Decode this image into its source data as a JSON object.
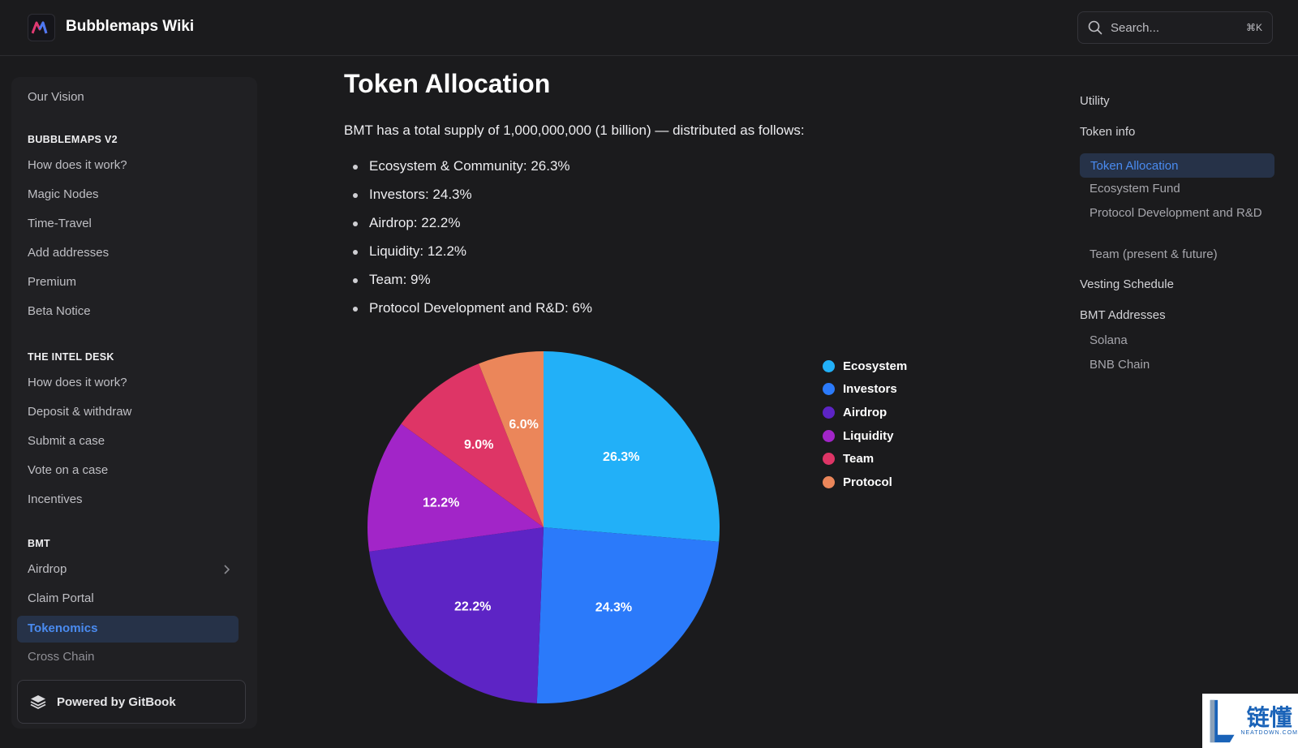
{
  "header": {
    "brand": "Bubblemaps Wiki",
    "search_placeholder": "Search...",
    "search_shortcut": "⌘K"
  },
  "sidebar": {
    "top_item": "Our Vision",
    "sections": [
      {
        "heading": "BUBBLEMAPS V2",
        "items": [
          "How does it work?",
          "Magic Nodes",
          "Time-Travel",
          "Add addresses",
          "Premium",
          "Beta Notice"
        ]
      },
      {
        "heading": "THE INTEL DESK",
        "items": [
          "How does it work?",
          "Deposit & withdraw",
          "Submit a case",
          "Vote on a case",
          "Incentives"
        ]
      },
      {
        "heading": "BMT",
        "items": [
          "Airdrop",
          "Claim Portal",
          "Tokenomics",
          "Cross Chain"
        ]
      }
    ],
    "active_item": "Tokenomics",
    "powered_by": "Powered by GitBook"
  },
  "main": {
    "title": "Token Allocation",
    "intro": "BMT has a total supply of 1,000,000,000 (1 billion) — distributed as follows:",
    "bullets": [
      "Ecosystem & Community: 26.3%",
      "Investors: 24.3%",
      "Airdrop: 22.2%",
      "Liquidity: 12.2%",
      "Team: 9%",
      "Protocol Development and R&D: 6%"
    ]
  },
  "chart_data": {
    "type": "pie",
    "categories": [
      "Ecosystem",
      "Investors",
      "Airdrop",
      "Liquidity",
      "Team",
      "Protocol"
    ],
    "values": [
      26.3,
      24.3,
      22.2,
      12.2,
      9.0,
      6.0
    ],
    "labels": [
      "26.3%",
      "24.3%",
      "22.2%",
      "12.2%",
      "9.0%",
      "6.0%"
    ],
    "colors": [
      "#22b0f8",
      "#2b7afa",
      "#5d24c5",
      "#a225c8",
      "#de3566",
      "#eb865a"
    ],
    "legend_position": "right"
  },
  "toc": {
    "items": [
      "Utility",
      "Token info",
      "Token Allocation",
      "Ecosystem Fund",
      "Protocol Development and R&D",
      "Team (present & future)",
      "Vesting Schedule",
      "BMT Addresses",
      "Solana",
      "BNB Chain"
    ],
    "active": "Token Allocation"
  },
  "watermark": {
    "cn": "链懂",
    "en": "NEATDOWN.COM"
  }
}
